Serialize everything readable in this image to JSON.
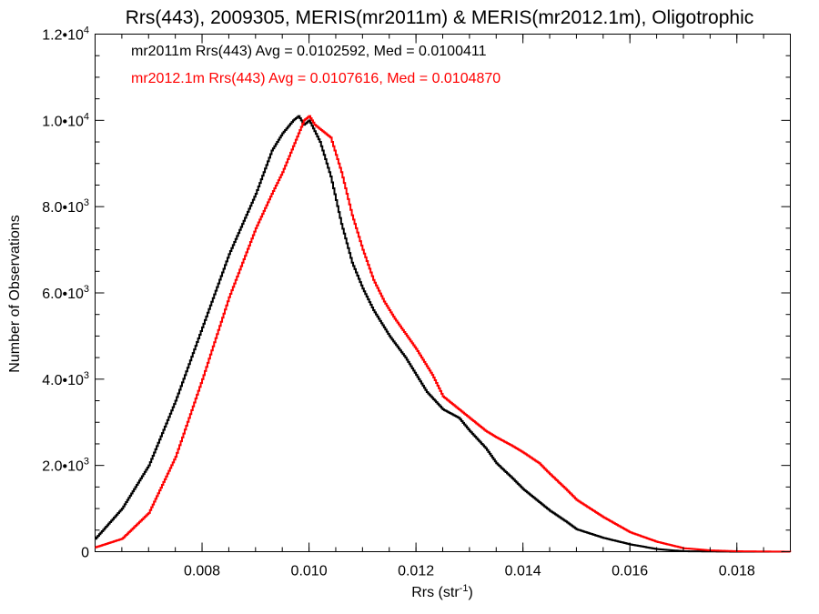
{
  "chart_data": {
    "type": "line",
    "title": "Rrs(443), 2009305, MERIS(mr2011m) & MERIS(mr2012.1m), Oligotrophic",
    "xlabel": "Rrs (str",
    "xlabel_sup": "-1",
    "xlabel_end": ")",
    "ylabel": "Number of Observations",
    "xlim": [
      0.006,
      0.019
    ],
    "ylim": [
      0,
      12000
    ],
    "x_ticks": [
      {
        "value": 0.008,
        "label": "0.008"
      },
      {
        "value": 0.01,
        "label": "0.010"
      },
      {
        "value": 0.012,
        "label": "0.012"
      },
      {
        "value": 0.014,
        "label": "0.014"
      },
      {
        "value": 0.016,
        "label": "0.016"
      },
      {
        "value": 0.018,
        "label": "0.018"
      }
    ],
    "y_ticks": [
      {
        "value": 0,
        "mant": "0",
        "exp": ""
      },
      {
        "value": 2000,
        "mant": "2.0•10",
        "exp": "3"
      },
      {
        "value": 4000,
        "mant": "4.0•10",
        "exp": "3"
      },
      {
        "value": 6000,
        "mant": "6.0•10",
        "exp": "3"
      },
      {
        "value": 8000,
        "mant": "8.0•10",
        "exp": "3"
      },
      {
        "value": 10000,
        "mant": "1.0•10",
        "exp": "4"
      },
      {
        "value": 12000,
        "mant": "1.2•10",
        "exp": "4"
      }
    ],
    "grid": false,
    "legend_position": "top-left",
    "series": [
      {
        "name": "mr2011m Rrs(443) Avg = 0.0102592, Med = 0.0100411",
        "color": "#000000",
        "x": [
          0.006,
          0.0065,
          0.007,
          0.0075,
          0.008,
          0.0085,
          0.009,
          0.0093,
          0.0095,
          0.0097,
          0.0098,
          0.0099,
          0.01,
          0.0102,
          0.0104,
          0.0106,
          0.0108,
          0.011,
          0.0112,
          0.0115,
          0.0118,
          0.012,
          0.0122,
          0.0125,
          0.0128,
          0.013,
          0.0133,
          0.0135,
          0.0138,
          0.014,
          0.0143,
          0.0145,
          0.0148,
          0.015,
          0.0155,
          0.016,
          0.0165,
          0.017,
          0.018,
          0.019
        ],
        "y": [
          300,
          1000,
          2000,
          3500,
          5200,
          6900,
          8300,
          9300,
          9700,
          10000,
          10100,
          9900,
          10000,
          9500,
          8700,
          7600,
          6700,
          6100,
          5600,
          5000,
          4500,
          4100,
          3700,
          3300,
          3100,
          2800,
          2400,
          2050,
          1700,
          1450,
          1150,
          950,
          700,
          520,
          320,
          170,
          60,
          10,
          0,
          0
        ]
      },
      {
        "name": "mr2012.1m Rrs(443) Avg = 0.0107616, Med = 0.0104870",
        "color": "#ff0000",
        "x": [
          0.006,
          0.0065,
          0.007,
          0.0075,
          0.008,
          0.0085,
          0.009,
          0.0093,
          0.0095,
          0.0098,
          0.0099,
          0.01,
          0.0101,
          0.0102,
          0.0104,
          0.0106,
          0.0108,
          0.011,
          0.0112,
          0.0114,
          0.0116,
          0.0118,
          0.012,
          0.0123,
          0.0125,
          0.0128,
          0.013,
          0.0133,
          0.0135,
          0.0138,
          0.014,
          0.0143,
          0.0145,
          0.0148,
          0.015,
          0.0155,
          0.016,
          0.0165,
          0.017,
          0.0175,
          0.018,
          0.019
        ],
        "y": [
          100,
          300,
          900,
          2200,
          4000,
          5900,
          7500,
          8300,
          8800,
          9700,
          10000,
          10100,
          9900,
          9800,
          9600,
          8800,
          7800,
          7000,
          6300,
          5800,
          5400,
          5050,
          4700,
          4100,
          3600,
          3300,
          3100,
          2800,
          2650,
          2450,
          2300,
          2050,
          1800,
          1450,
          1200,
          800,
          450,
          230,
          80,
          30,
          10,
          0
        ]
      }
    ]
  }
}
